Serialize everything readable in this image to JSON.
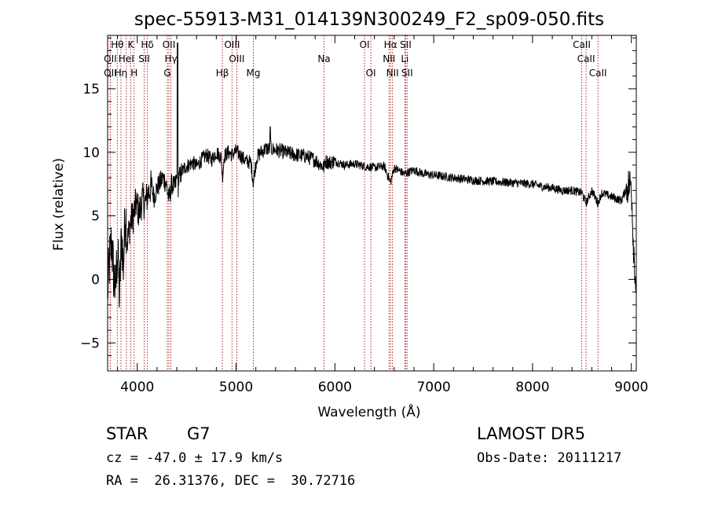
{
  "chart_data": {
    "type": "line",
    "title": "spec-55913-M31_014139N300249_F2_sp09-050.fits",
    "xlabel": "Wavelength (Å)",
    "ylabel": "Flux (relative)",
    "xlim": [
      3700,
      9050
    ],
    "ylim": [
      -7.2,
      19.2
    ],
    "xticks": [
      4000,
      5000,
      6000,
      7000,
      8000,
      9000
    ],
    "yticks": [
      -5,
      0,
      5,
      10,
      15
    ],
    "grid": false,
    "spectrum_anchors": {
      "x": [
        3700,
        3720,
        3740,
        3760,
        3780,
        3800,
        3820,
        3840,
        3860,
        3880,
        3900,
        3930,
        3960,
        3990,
        4020,
        4050,
        4080,
        4110,
        4140,
        4170,
        4200,
        4230,
        4260,
        4290,
        4320,
        4350,
        4380,
        4400,
        4410,
        4420,
        4440,
        4480,
        4520,
        4560,
        4600,
        4650,
        4700,
        4750,
        4800,
        4850,
        4862,
        4880,
        4920,
        4960,
        5000,
        5050,
        5100,
        5150,
        5175,
        5190,
        5210,
        5250,
        5300,
        5400,
        5500,
        5600,
        5700,
        5800,
        5890,
        5900,
        5950,
        6000,
        6100,
        6200,
        6300,
        6400,
        6500,
        6563,
        6600,
        6700,
        6800,
        6900,
        7000,
        7200,
        7400,
        7600,
        7800,
        8000,
        8100,
        8200,
        8300,
        8400,
        8500,
        8542,
        8600,
        8662,
        8700,
        8800,
        8900,
        8950,
        9000,
        9020,
        9050
      ],
      "y": [
        -1.0,
        1.5,
        3.0,
        0.5,
        -1.0,
        2.5,
        -1.5,
        3.5,
        1.0,
        5.5,
        3.0,
        4.5,
        5.0,
        6.0,
        5.2,
        6.3,
        6.0,
        6.8,
        7.3,
        6.5,
        7.2,
        7.6,
        8.0,
        7.6,
        6.3,
        7.5,
        7.2,
        8.0,
        7.0,
        7.8,
        8.3,
        8.8,
        9.0,
        9.2,
        8.9,
        9.4,
        9.8,
        9.4,
        10.0,
        9.6,
        8.0,
        9.7,
        10.0,
        9.8,
        10.1,
        9.7,
        9.3,
        9.2,
        7.6,
        8.6,
        9.6,
        10.0,
        10.3,
        10.2,
        10.0,
        9.8,
        9.7,
        9.4,
        8.8,
        9.3,
        9.2,
        9.3,
        9.0,
        9.1,
        8.9,
        8.8,
        8.9,
        7.6,
        8.8,
        8.3,
        8.6,
        8.3,
        8.2,
        8.0,
        7.8,
        7.7,
        7.6,
        7.5,
        7.3,
        7.2,
        7.0,
        7.0,
        6.8,
        6.0,
        7.0,
        6.0,
        6.8,
        6.5,
        6.2,
        7.2,
        7.6,
        3.0,
        -1.0
      ]
    },
    "lines": [
      {
        "label": "Hθ",
        "x": 3798,
        "row": 1
      },
      {
        "label": "K",
        "x": 3934,
        "row": 1
      },
      {
        "label": "Hδ",
        "x": 4102,
        "row": 1
      },
      {
        "label": "OII",
        "x": 4320,
        "row": 1
      },
      {
        "label": "OIII",
        "x": 4959,
        "row": 1
      },
      {
        "label": "OI",
        "x": 6300,
        "row": 1
      },
      {
        "label": "Hα",
        "x": 6563,
        "row": 1
      },
      {
        "label": "SII",
        "x": 6716,
        "row": 1
      },
      {
        "label": "CaII",
        "x": 8498,
        "row": 1
      },
      {
        "label": "OII",
        "x": 3727,
        "row": 2
      },
      {
        "label": "HeI",
        "x": 3889,
        "row": 2
      },
      {
        "label": "SII",
        "x": 4070,
        "row": 2
      },
      {
        "label": "Hγ",
        "x": 4340,
        "row": 2
      },
      {
        "label": "OIII",
        "x": 5007,
        "row": 2
      },
      {
        "label": "Na",
        "x": 5890,
        "row": 2
      },
      {
        "label": "NII",
        "x": 6548,
        "row": 2
      },
      {
        "label": "Li",
        "x": 6708,
        "row": 2
      },
      {
        "label": "CaII",
        "x": 8542,
        "row": 2
      },
      {
        "label": "OII",
        "x": 3727,
        "row": 3
      },
      {
        "label": "Hη",
        "x": 3835,
        "row": 3
      },
      {
        "label": "H",
        "x": 3968,
        "row": 3
      },
      {
        "label": "G",
        "x": 4304,
        "row": 3
      },
      {
        "label": "Hβ",
        "x": 4861,
        "row": 3
      },
      {
        "label": "Mg",
        "x": 5175,
        "row": 3
      },
      {
        "label": "OI",
        "x": 6364,
        "row": 3
      },
      {
        "label": "NII",
        "x": 6583,
        "row": 3
      },
      {
        "label": "SII",
        "x": 6731,
        "row": 3
      },
      {
        "label": "CaII",
        "x": 8662,
        "row": 3
      }
    ]
  },
  "info": {
    "class": "STAR",
    "subclass": "G7",
    "survey": "LAMOST DR5",
    "cz": "cz = -47.0 ± 17.9 km/s",
    "obs_date": "Obs-Date: 20111217",
    "coords": "RA =  26.31376, DEC =  30.72716"
  },
  "colors": {
    "spectrum": "#000000",
    "line_marker": "#b22222",
    "axis": "#000000"
  }
}
